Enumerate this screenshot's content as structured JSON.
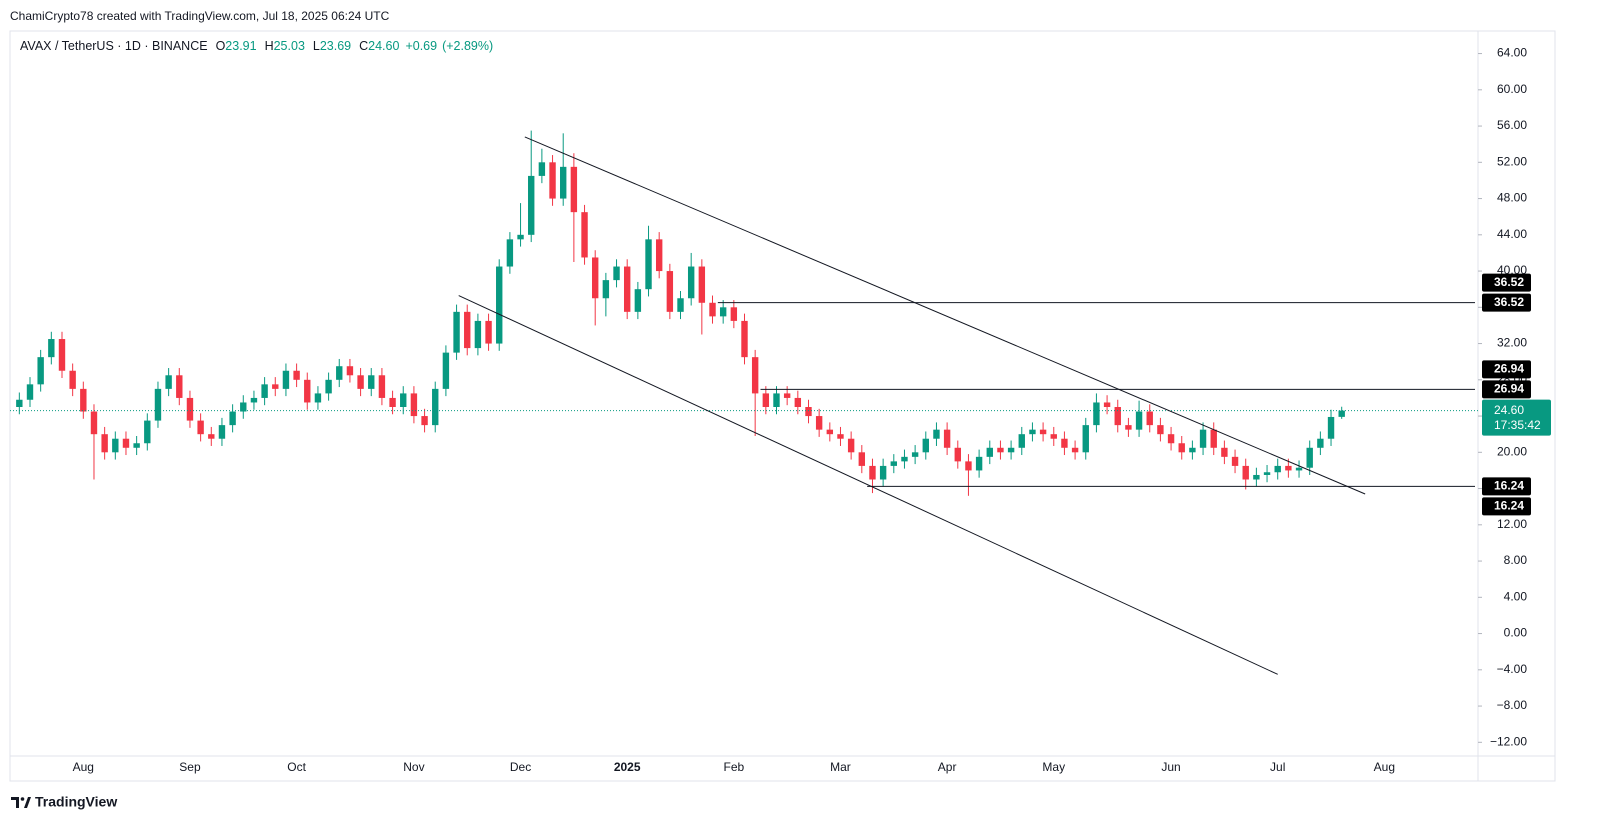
{
  "credit": "ChamiCrypto78 created with TradingView.com, Jul 18, 2025 06:24 UTC",
  "brand": "TradingView",
  "chart_data": {
    "type": "candlestick",
    "title": "AVAX / TetherUS · 1D · BINANCE",
    "ohlc_labels": [
      "O",
      "H",
      "L",
      "C"
    ],
    "change": {
      "value": 0.69,
      "label": "+0.69"
    },
    "change_percent": {
      "value": 2.89,
      "label": "(+2.89%)"
    },
    "last_price": {
      "value": 24.6,
      "label": "24.60"
    },
    "countdown": "17:35:42",
    "up_color": "#089981",
    "down_color": "#f23645",
    "categories": [
      null,
      null,
      null,
      null,
      null,
      null,
      "Aug",
      null,
      null,
      null,
      null,
      null,
      null,
      null,
      null,
      null,
      "Sep",
      null,
      null,
      null,
      null,
      null,
      null,
      null,
      null,
      null,
      "Oct",
      null,
      null,
      null,
      null,
      null,
      null,
      null,
      null,
      null,
      null,
      "Nov",
      null,
      null,
      null,
      null,
      null,
      null,
      null,
      null,
      null,
      "Dec",
      null,
      null,
      null,
      null,
      null,
      null,
      null,
      null,
      null,
      "2025",
      null,
      null,
      null,
      null,
      null,
      null,
      null,
      null,
      null,
      "Feb",
      null,
      null,
      null,
      null,
      null,
      null,
      null,
      null,
      null,
      "Mar",
      null,
      null,
      null,
      null,
      null,
      null,
      null,
      null,
      null,
      "Apr",
      null,
      null,
      null,
      null,
      null,
      null,
      null,
      null,
      null,
      "May",
      null,
      null,
      null,
      null,
      null,
      null,
      null,
      null,
      null,
      null,
      "Jun",
      null,
      null,
      null,
      null,
      null,
      null,
      null,
      null,
      null,
      "Jul",
      null,
      null,
      null,
      null,
      null,
      null,
      null,
      null,
      null,
      "Aug",
      null,
      null,
      null,
      null,
      null,
      null,
      null,
      null
    ],
    "open": [
      25.0,
      25.8,
      27.5,
      30.5,
      32.5,
      29.0,
      27.0,
      24.5,
      22.0,
      20.0,
      21.5,
      20.5,
      21.0,
      23.5,
      27.0,
      28.5,
      26.0,
      23.5,
      22.0,
      21.5,
      23.0,
      24.5,
      25.5,
      26.0,
      27.5,
      27.0,
      29.0,
      28.0,
      25.5,
      26.5,
      28.0,
      29.5,
      28.5,
      27.0,
      28.5,
      26.0,
      25.0,
      26.5,
      24.0,
      23.0,
      27.0,
      31.0,
      35.5,
      31.5,
      34.5,
      32.0,
      40.5,
      43.5,
      44.0,
      50.5,
      52.0,
      48.0,
      51.5,
      46.5,
      41.5,
      37.0,
      39.0,
      40.5,
      35.5,
      38.0,
      43.5,
      40.0,
      35.5,
      37.0,
      40.5,
      36.5,
      35.0,
      36.0,
      34.5,
      30.5,
      26.5,
      25.0,
      26.5,
      26.0,
      25.0,
      24.0,
      22.5,
      22.0,
      21.5,
      20.0,
      18.5,
      17.0,
      18.5,
      19.0,
      19.5,
      20.0,
      21.5,
      22.5,
      20.5,
      19.0,
      18.0,
      19.5,
      20.5,
      20.0,
      20.5,
      22.0,
      22.5,
      22.0,
      21.5,
      20.5,
      20.0,
      23.0,
      25.5,
      25.0,
      23.0,
      22.5,
      24.5,
      23.0,
      22.0,
      21.0,
      20.0,
      20.5,
      22.5,
      20.5,
      19.5,
      18.5,
      17.0,
      17.5,
      17.8,
      18.5,
      18.0,
      18.3,
      20.5,
      21.5,
      23.91,
      null,
      null,
      null,
      null,
      null,
      null,
      null,
      null,
      null,
      null,
      null,
      null
    ],
    "high": [
      26.6,
      28.3,
      31.3,
      33.3,
      33.3,
      29.8,
      27.8,
      25.3,
      22.8,
      22.3,
      22.3,
      21.8,
      24.3,
      27.8,
      29.3,
      29.3,
      26.8,
      24.3,
      22.8,
      23.8,
      25.3,
      26.3,
      26.8,
      28.3,
      28.3,
      29.8,
      29.8,
      28.8,
      27.3,
      28.8,
      30.3,
      30.3,
      29.3,
      29.3,
      29.3,
      26.8,
      27.3,
      27.3,
      24.8,
      27.8,
      31.8,
      36.3,
      36.3,
      35.3,
      35.3,
      41.3,
      44.3,
      47.5,
      55.5,
      53.5,
      52.8,
      55.2,
      53.0,
      47.3,
      42.3,
      39.8,
      41.3,
      41.3,
      38.8,
      45.0,
      44.3,
      40.8,
      37.8,
      42.0,
      41.3,
      37.3,
      36.8,
      36.8,
      35.3,
      31.3,
      27.3,
      27.3,
      27.3,
      26.8,
      25.8,
      24.8,
      23.3,
      22.8,
      22.3,
      20.8,
      19.3,
      19.3,
      19.8,
      20.3,
      20.8,
      22.3,
      23.3,
      23.3,
      21.3,
      19.8,
      20.3,
      21.3,
      21.3,
      21.3,
      22.8,
      23.3,
      23.3,
      22.8,
      22.3,
      21.3,
      23.8,
      26.5,
      26.3,
      25.8,
      23.8,
      25.7,
      25.3,
      23.8,
      22.8,
      21.8,
      21.3,
      23.3,
      23.3,
      21.3,
      20.3,
      19.3,
      18.3,
      18.6,
      19.3,
      19.3,
      19.1,
      21.3,
      22.3,
      24.7,
      25.03,
      null,
      null,
      null,
      null,
      null,
      null,
      null,
      null,
      null,
      null,
      null,
      null
    ],
    "low": [
      24.2,
      25.0,
      26.7,
      29.7,
      28.2,
      26.2,
      23.7,
      17.0,
      19.2,
      19.2,
      19.7,
      19.7,
      20.2,
      22.7,
      26.2,
      25.2,
      22.7,
      21.2,
      20.7,
      20.7,
      22.2,
      23.7,
      24.7,
      25.2,
      26.2,
      26.2,
      27.2,
      24.7,
      24.7,
      25.7,
      27.2,
      27.7,
      26.2,
      26.2,
      25.2,
      24.2,
      24.2,
      23.2,
      22.2,
      22.2,
      26.2,
      30.2,
      30.7,
      30.7,
      31.2,
      31.2,
      39.7,
      42.7,
      43.2,
      49.7,
      47.2,
      47.2,
      41.0,
      40.7,
      34.0,
      35.0,
      38.2,
      34.7,
      34.7,
      37.2,
      39.2,
      34.7,
      34.7,
      36.2,
      33.0,
      34.2,
      34.2,
      33.7,
      29.7,
      21.8,
      24.2,
      24.2,
      25.2,
      24.2,
      23.2,
      21.7,
      21.2,
      20.7,
      19.2,
      17.7,
      15.5,
      16.2,
      17.7,
      18.2,
      18.7,
      19.2,
      20.7,
      19.7,
      18.2,
      15.2,
      17.2,
      18.7,
      19.2,
      19.2,
      19.7,
      21.2,
      21.2,
      20.7,
      19.7,
      19.2,
      19.2,
      22.2,
      24.2,
      22.2,
      21.7,
      21.7,
      22.2,
      21.2,
      20.2,
      19.2,
      19.2,
      19.7,
      19.7,
      18.7,
      17.7,
      15.9,
      16.2,
      16.7,
      17.0,
      17.2,
      17.2,
      17.5,
      19.7,
      20.7,
      23.69,
      null,
      null,
      null,
      null,
      null,
      null,
      null,
      null,
      null,
      null,
      null,
      null
    ],
    "close": [
      25.8,
      27.5,
      30.5,
      32.5,
      29.0,
      27.0,
      24.5,
      22.0,
      20.0,
      21.5,
      20.5,
      21.0,
      23.5,
      27.0,
      28.5,
      26.0,
      23.5,
      22.0,
      21.5,
      23.0,
      24.5,
      25.5,
      26.0,
      27.5,
      27.0,
      29.0,
      28.0,
      25.5,
      26.5,
      28.0,
      29.5,
      28.5,
      27.0,
      28.5,
      26.0,
      25.0,
      26.5,
      24.0,
      23.0,
      27.0,
      31.0,
      35.5,
      31.5,
      34.5,
      32.0,
      40.5,
      43.5,
      44.0,
      50.5,
      52.0,
      48.0,
      51.5,
      46.5,
      41.5,
      37.0,
      39.0,
      40.5,
      35.5,
      38.0,
      43.5,
      40.0,
      35.5,
      37.0,
      40.5,
      36.5,
      35.0,
      36.0,
      34.5,
      30.5,
      26.5,
      25.0,
      26.5,
      26.0,
      25.0,
      24.0,
      22.5,
      22.0,
      21.5,
      20.0,
      18.5,
      17.0,
      18.5,
      19.0,
      19.5,
      20.0,
      21.5,
      22.5,
      20.5,
      19.0,
      18.0,
      19.5,
      20.5,
      20.0,
      20.5,
      22.0,
      22.5,
      22.0,
      21.5,
      20.5,
      20.0,
      23.0,
      25.5,
      25.0,
      23.0,
      22.5,
      24.5,
      23.0,
      22.0,
      21.0,
      20.0,
      20.5,
      22.5,
      20.5,
      19.5,
      18.5,
      17.0,
      17.5,
      17.8,
      18.5,
      18.0,
      18.3,
      20.5,
      21.5,
      23.9,
      24.6,
      null,
      null,
      null,
      null,
      null,
      null,
      null,
      null,
      null,
      null,
      null,
      null
    ],
    "ylim": [
      -13.4,
      66.6
    ],
    "yticks": [
      {
        "value": -12,
        "label": "−12.00"
      },
      {
        "value": -8,
        "label": "−8.00"
      },
      {
        "value": -4,
        "label": "−4.00"
      },
      {
        "value": 0,
        "label": "0.00"
      },
      {
        "value": 4,
        "label": "4.00"
      },
      {
        "value": 8,
        "label": "8.00"
      },
      {
        "value": 12,
        "label": "12.00"
      },
      {
        "value": 16,
        "label": "16.00"
      },
      {
        "value": 20,
        "label": "20.00"
      },
      {
        "value": 24,
        "label": "24.00"
      },
      {
        "value": 28,
        "label": "28.00"
      },
      {
        "value": 32,
        "label": "32.00"
      },
      {
        "value": 36,
        "label": "36.00"
      },
      {
        "value": 40,
        "label": "40.00"
      },
      {
        "value": 44,
        "label": "44.00"
      },
      {
        "value": 48,
        "label": "48.00"
      },
      {
        "value": 52,
        "label": "52.00"
      },
      {
        "value": 56,
        "label": "56.00"
      },
      {
        "value": 60,
        "label": "60.00"
      },
      {
        "value": 64,
        "label": "64.00"
      }
    ],
    "levels": [
      {
        "value": 36.52,
        "label": "36.52",
        "start": 65.5
      },
      {
        "value": 26.94,
        "label": "26.94",
        "start": 69.5
      },
      {
        "value": 16.24,
        "label": "16.24",
        "start": 79.5
      }
    ],
    "trendlines": [
      {
        "x": [
          47.4,
          126.2
        ],
        "y": [
          54.8,
          15.4
        ]
      },
      {
        "x": [
          41.2,
          118.0
        ],
        "y": [
          37.3,
          -4.5
        ]
      }
    ]
  }
}
